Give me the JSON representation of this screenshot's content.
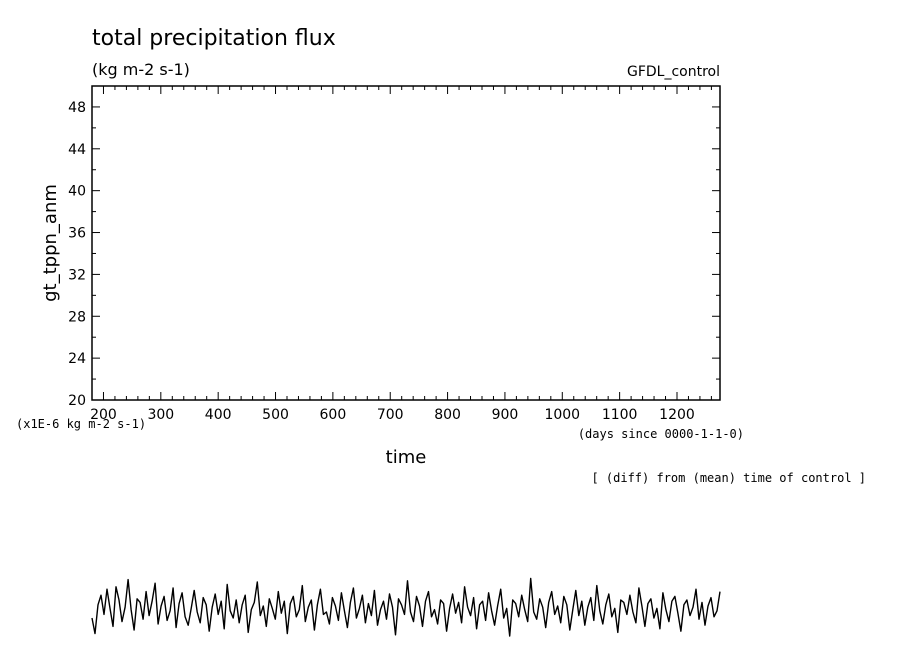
{
  "figure": {
    "title": "total precipitation flux",
    "units": "(kg m-2 s-1)",
    "dataset": "GFDL_control",
    "scale_note": "(x1E-6 kg m-2 s-1)",
    "time_units": "(days since 0000-1-1-0)",
    "xlabel": "time",
    "ylabel": "gt_tppn_anm",
    "footer_note": "[ (diff) from (mean) time of control ]"
  },
  "chart_data": {
    "type": "line",
    "title": "total precipitation flux",
    "xlabel": "time",
    "ylabel": "gt_tppn_anm",
    "xlim": [
      180,
      1275
    ],
    "ylim": [
      20,
      50
    ],
    "xticks": [
      200,
      300,
      400,
      500,
      600,
      700,
      800,
      900,
      1000,
      1100,
      1200
    ],
    "yticks": [
      20,
      24,
      28,
      32,
      36,
      40,
      44,
      48
    ],
    "grid": false,
    "series": [
      {
        "x_start": 180,
        "x_end": 1275,
        "y_approx": [
          -0.5,
          -1.8,
          0.6,
          1.4,
          -0.2,
          1.9,
          0.3,
          -1.2,
          2.1,
          1.0,
          -0.8,
          0.4,
          2.7,
          0.2,
          -1.5,
          1.1,
          0.8,
          -0.6,
          1.7,
          -0.3,
          0.9,
          2.4,
          -1.0,
          0.5,
          1.3,
          -0.7,
          0.1,
          2.0,
          -1.3,
          0.7,
          1.6,
          -0.4,
          -1.1,
          0.3,
          1.8,
          0.0,
          -0.9,
          1.2,
          0.6,
          -1.6,
          0.4,
          1.5,
          -0.2,
          0.9,
          -1.4,
          2.3,
          0.1,
          -0.5,
          1.0,
          -0.9,
          0.6,
          1.4,
          -1.7,
          0.2,
          0.8,
          2.5,
          -0.3,
          0.5,
          -1.2,
          1.1,
          0.3,
          -0.6,
          1.7,
          -0.1,
          0.9,
          -1.8,
          0.7,
          1.3,
          -0.4,
          0.2,
          2.2,
          -0.8,
          0.4,
          1.0,
          -1.5,
          0.6,
          1.9,
          -0.2,
          0.0,
          -1.0,
          1.2,
          0.5,
          -0.7,
          1.6,
          0.1,
          -1.3,
          0.8,
          2.0,
          -0.5,
          0.3,
          1.4,
          -0.9,
          0.7,
          -0.3,
          1.8,
          -1.1,
          0.2,
          0.9,
          -0.6,
          1.5,
          0.4,
          -1.9,
          1.1,
          0.6,
          -0.2,
          2.6,
          0.0,
          -0.8,
          1.3,
          0.5,
          -1.2,
          0.9,
          1.7,
          -0.4,
          0.2,
          -1.0,
          1.0,
          0.7,
          -1.6,
          0.3,
          1.5,
          -0.1,
          0.8,
          -0.9,
          2.1,
          0.4,
          -0.3,
          1.2,
          -1.4,
          0.6,
          0.9,
          -0.7,
          1.6,
          0.1,
          -1.1,
          0.5,
          1.9,
          -0.5,
          0.3,
          -2.0,
          1.0,
          0.7,
          -0.4,
          1.4,
          0.2,
          -0.8,
          2.8,
          0.0,
          -0.6,
          1.1,
          0.4,
          -1.3,
          0.8,
          1.7,
          -0.2,
          0.5,
          -0.9,
          1.3,
          0.6,
          -1.5,
          0.2,
          1.8,
          -0.3,
          0.9,
          -1.1,
          0.4,
          1.2,
          -0.7,
          2.2,
          0.1,
          -1.0,
          0.6,
          1.5,
          -0.4,
          0.3,
          -1.7,
          1.0,
          0.8,
          -0.2,
          1.4,
          0.0,
          -0.9,
          2.0,
          0.5,
          -1.2,
          0.7,
          1.1,
          -0.5,
          0.3,
          -1.4,
          1.6,
          0.2,
          -0.8,
          0.9,
          1.3,
          -0.1,
          -1.6,
          0.6,
          1.0,
          -0.3,
          0.4,
          1.9,
          -0.6,
          0.8,
          -1.1,
          0.5,
          1.2,
          -0.4,
          0.1,
          1.7
        ]
      }
    ]
  }
}
